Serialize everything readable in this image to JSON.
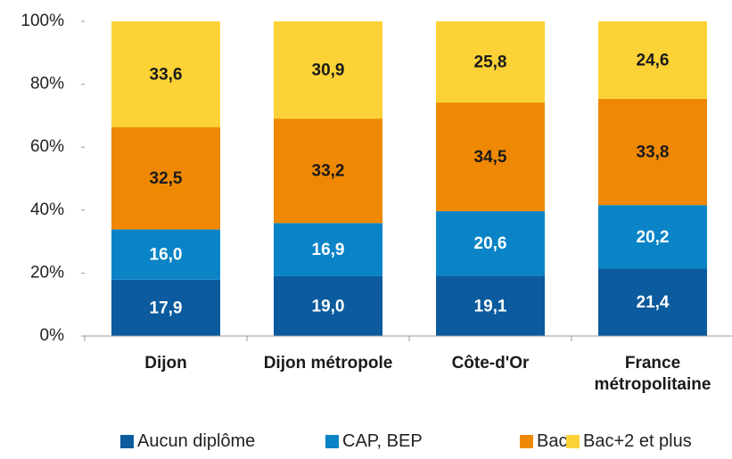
{
  "chart_data": {
    "type": "stacked_bar",
    "categories": [
      "Dijon",
      "Dijon métropole",
      "Côte-d'Or",
      "France métropolitaine"
    ],
    "series": [
      {
        "name": "Aucun diplôme",
        "color": "#0b5b9e",
        "values": [
          17.9,
          19.0,
          19.1,
          21.4
        ],
        "value_labels": [
          "17,9",
          "19,0",
          "19,1",
          "21,4"
        ]
      },
      {
        "name": "CAP, BEP",
        "color": "#0a84c6",
        "values": [
          16.0,
          16.9,
          20.6,
          20.2
        ],
        "value_labels": [
          "16,0",
          "16,9",
          "20,6",
          "20,2"
        ]
      },
      {
        "name": "Bac",
        "color": "#ef8904",
        "values": [
          32.5,
          33.2,
          34.5,
          33.8
        ],
        "value_labels": [
          "32,5",
          "33,2",
          "34,5",
          "33,8"
        ]
      },
      {
        "name": "Bac+2 et plus",
        "color": "#fdd236",
        "values": [
          33.6,
          30.9,
          25.8,
          24.6
        ],
        "value_labels": [
          "33,6",
          "30,9",
          "25,8",
          "24,6"
        ]
      }
    ],
    "ylim": [
      0,
      100
    ],
    "yticks": [
      {
        "value": 0,
        "label": "0%"
      },
      {
        "value": 20,
        "label": "20%"
      },
      {
        "value": 40,
        "label": "40%"
      },
      {
        "value": 60,
        "label": "60%"
      },
      {
        "value": 80,
        "label": "80%"
      },
      {
        "value": 100,
        "label": "100%"
      }
    ],
    "legend": "bottom"
  }
}
